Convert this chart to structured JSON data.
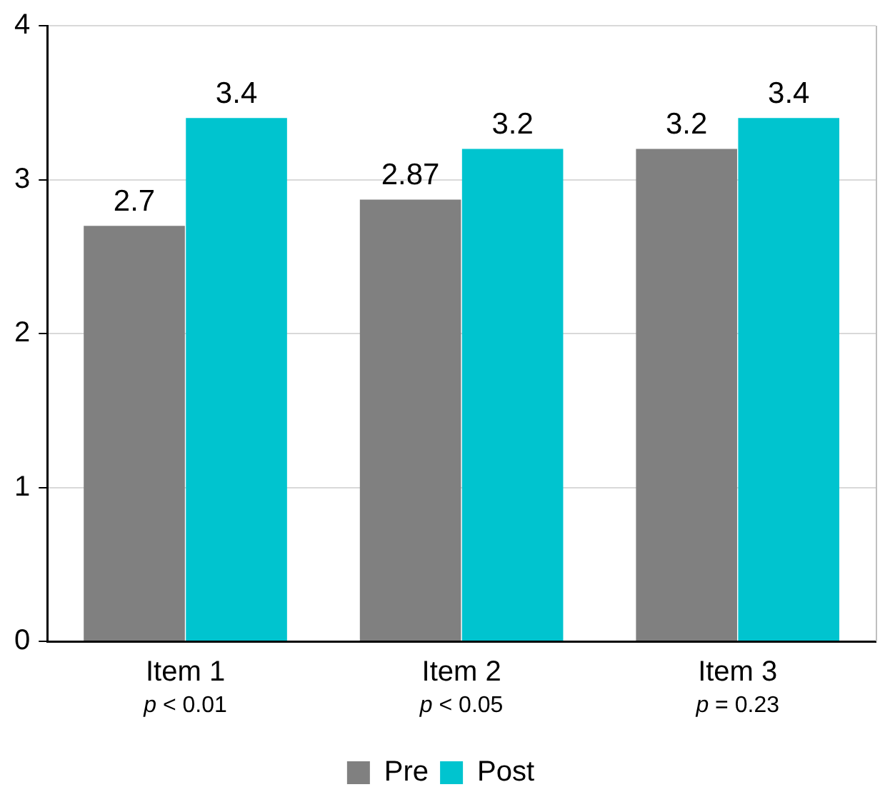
{
  "chart_data": {
    "type": "bar",
    "categories": [
      "Item 1",
      "Item 2",
      "Item 3"
    ],
    "series": [
      {
        "name": "Pre",
        "color": "#808080",
        "values": [
          2.7,
          2.87,
          3.2
        ]
      },
      {
        "name": "Post",
        "color": "#00c4cf",
        "values": [
          3.4,
          3.2,
          3.4
        ]
      }
    ],
    "ylim": [
      0,
      4
    ],
    "yticks": [
      0,
      1,
      2,
      3,
      4
    ],
    "grid": "y",
    "legend": "bottom",
    "data_labels": true,
    "annotations": [
      "p < 0.01",
      "p < 0.05",
      "p = 0.23"
    ]
  }
}
